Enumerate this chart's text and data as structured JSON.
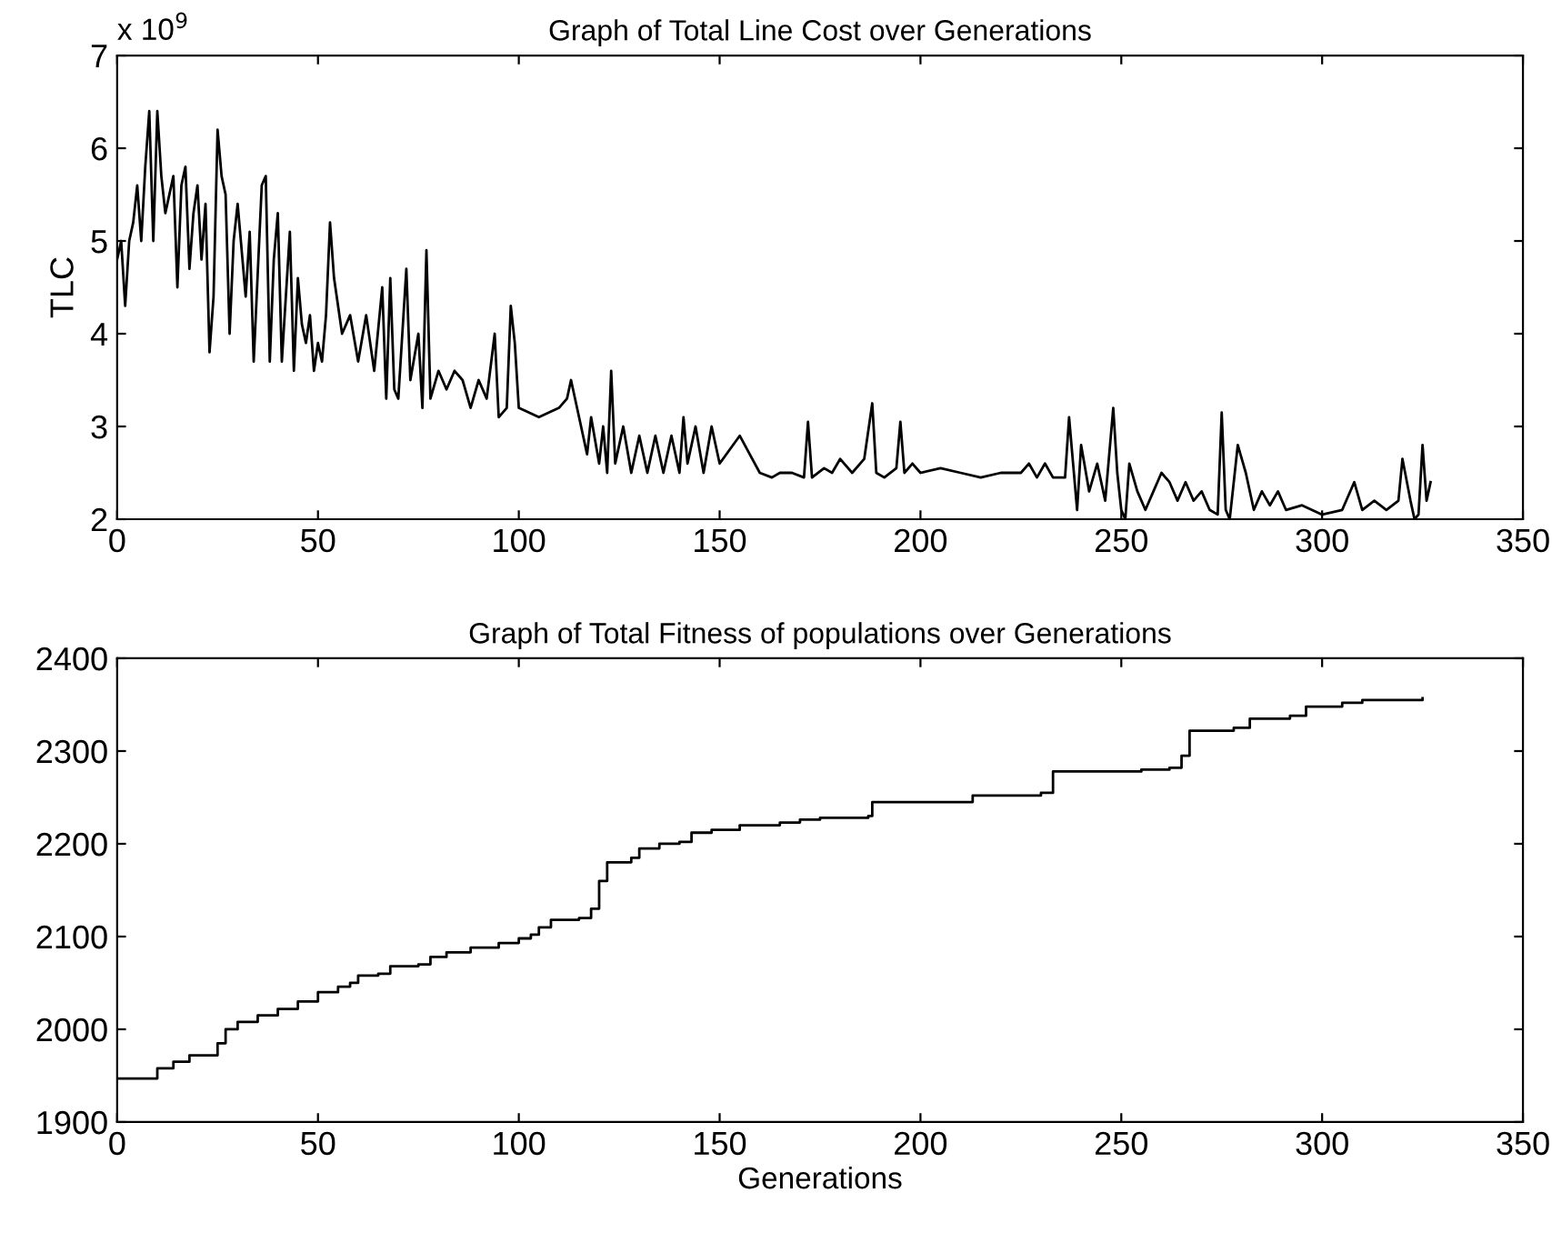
{
  "chart_data": [
    {
      "type": "line",
      "title": "Graph of Total Line Cost over Generations",
      "ylabel": "TLC",
      "annotations": [
        "x 10$^{9}$"
      ],
      "xlim": [
        0,
        350
      ],
      "xticks": [
        0,
        50,
        100,
        150,
        200,
        250,
        300,
        350
      ],
      "ylim": [
        2,
        7
      ],
      "yticks": [
        2,
        3,
        4,
        5,
        6,
        7
      ],
      "grid": false,
      "legend": false,
      "series": [
        {
          "color": "#000000",
          "x": [
            0,
            1,
            2,
            3,
            4,
            5,
            6,
            7,
            8,
            9,
            10,
            11,
            12,
            14,
            15,
            16,
            17,
            18,
            19,
            20,
            21,
            22,
            23,
            24,
            25,
            26,
            27,
            28,
            29,
            30,
            32,
            33,
            34,
            36,
            37,
            38,
            39,
            40,
            41,
            42,
            43,
            44,
            45,
            46,
            47,
            48,
            49,
            50,
            51,
            52,
            53,
            54,
            56,
            58,
            60,
            62,
            64,
            66,
            67,
            68,
            69,
            70,
            72,
            73,
            75,
            76,
            77,
            78,
            80,
            82,
            84,
            86,
            88,
            90,
            92,
            94,
            95,
            97,
            98,
            99,
            100,
            105,
            110,
            112,
            113,
            115,
            117,
            118,
            120,
            121,
            122,
            123,
            124,
            126,
            128,
            130,
            132,
            134,
            136,
            138,
            140,
            141,
            142,
            144,
            146,
            148,
            150,
            155,
            160,
            163,
            165,
            168,
            171,
            172,
            173,
            176,
            178,
            180,
            183,
            186,
            188,
            189,
            191,
            194,
            195,
            196,
            198,
            200,
            205,
            210,
            215,
            220,
            225,
            227,
            229,
            231,
            233,
            236,
            237,
            238,
            239,
            240,
            242,
            244,
            246,
            248,
            249,
            250,
            251,
            252,
            254,
            256,
            258,
            260,
            262,
            264,
            266,
            268,
            270,
            272,
            274,
            275,
            276,
            277,
            279,
            281,
            283,
            285,
            287,
            289,
            291,
            295,
            300,
            305,
            308,
            310,
            313,
            316,
            319,
            320,
            322,
            323,
            324,
            325,
            326,
            327
          ],
          "values": [
            4.8,
            5.0,
            4.3,
            5.0,
            5.2,
            5.6,
            5.0,
            5.8,
            6.4,
            5.0,
            6.4,
            5.7,
            5.3,
            5.7,
            4.5,
            5.6,
            5.8,
            4.7,
            5.3,
            5.6,
            4.8,
            5.4,
            3.8,
            4.4,
            6.2,
            5.7,
            5.5,
            4.0,
            5.0,
            5.4,
            4.4,
            5.1,
            3.7,
            5.6,
            5.7,
            3.7,
            4.8,
            5.3,
            3.7,
            4.4,
            5.1,
            3.6,
            4.6,
            4.1,
            3.9,
            4.2,
            3.6,
            3.9,
            3.7,
            4.2,
            5.2,
            4.6,
            4.0,
            4.2,
            3.7,
            4.2,
            3.6,
            4.5,
            3.3,
            4.6,
            3.4,
            3.3,
            4.7,
            3.5,
            4.0,
            3.2,
            4.9,
            3.3,
            3.6,
            3.4,
            3.6,
            3.5,
            3.2,
            3.5,
            3.3,
            4.0,
            3.1,
            3.2,
            4.3,
            3.9,
            3.2,
            3.1,
            3.2,
            3.3,
            3.5,
            3.1,
            2.7,
            3.1,
            2.6,
            3.0,
            2.5,
            3.6,
            2.6,
            3.0,
            2.5,
            2.9,
            2.5,
            2.9,
            2.5,
            2.9,
            2.5,
            3.1,
            2.6,
            3.0,
            2.5,
            3.0,
            2.6,
            2.9,
            2.5,
            2.45,
            2.5,
            2.5,
            2.45,
            3.05,
            2.45,
            2.55,
            2.5,
            2.65,
            2.5,
            2.65,
            3.25,
            2.5,
            2.45,
            2.55,
            3.05,
            2.5,
            2.6,
            2.5,
            2.55,
            2.5,
            2.45,
            2.5,
            2.5,
            2.6,
            2.45,
            2.6,
            2.45,
            2.45,
            3.1,
            2.6,
            2.1,
            2.8,
            2.3,
            2.6,
            2.2,
            3.2,
            2.5,
            2.1,
            2.0,
            2.6,
            2.3,
            2.1,
            2.3,
            2.5,
            2.4,
            2.2,
            2.4,
            2.2,
            2.3,
            2.1,
            2.05,
            3.15,
            2.1,
            2.0,
            2.8,
            2.5,
            2.1,
            2.3,
            2.15,
            2.3,
            2.1,
            2.15,
            2.05,
            2.1,
            2.4,
            2.1,
            2.2,
            2.1,
            2.2,
            2.65,
            2.2,
            2.0,
            2.05,
            2.8,
            2.2,
            2.4
          ]
        }
      ]
    },
    {
      "type": "step",
      "title": "Graph of Total Fitness of populations over Generations",
      "xlabel": "Generations",
      "xlim": [
        0,
        350
      ],
      "xticks": [
        0,
        50,
        100,
        150,
        200,
        250,
        300,
        350
      ],
      "ylim": [
        1900,
        2400
      ],
      "yticks": [
        1900,
        2000,
        2100,
        2200,
        2300,
        2400
      ],
      "grid": false,
      "legend": false,
      "series": [
        {
          "color": "#000000",
          "x": [
            0,
            8,
            10,
            14,
            18,
            22,
            25,
            27,
            30,
            35,
            40,
            45,
            50,
            55,
            58,
            60,
            65,
            68,
            75,
            78,
            82,
            88,
            95,
            100,
            103,
            105,
            108,
            115,
            118,
            120,
            122,
            128,
            130,
            135,
            140,
            143,
            148,
            155,
            165,
            170,
            175,
            187,
            188,
            205,
            213,
            230,
            233,
            255,
            262,
            265,
            267,
            278,
            282,
            292,
            296,
            305,
            310,
            325
          ],
          "values": [
            1947,
            1947,
            1958,
            1965,
            1972,
            1972,
            1985,
            2000,
            2008,
            2015,
            2022,
            2030,
            2040,
            2046,
            2050,
            2058,
            2060,
            2068,
            2070,
            2078,
            2083,
            2088,
            2093,
            2098,
            2102,
            2110,
            2118,
            2120,
            2130,
            2160,
            2180,
            2185,
            2195,
            2200,
            2202,
            2212,
            2215,
            2220,
            2223,
            2226,
            2228,
            2230,
            2245,
            2245,
            2252,
            2255,
            2278,
            2280,
            2282,
            2295,
            2322,
            2325,
            2335,
            2338,
            2348,
            2352,
            2355,
            2357
          ]
        }
      ]
    }
  ]
}
